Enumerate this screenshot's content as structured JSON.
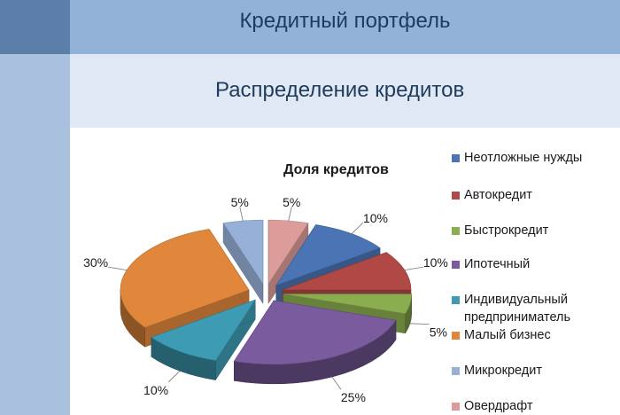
{
  "slide": {
    "title": "Кредитный портфель",
    "subtitle": "Распределение кредитов"
  },
  "chart_data": {
    "type": "pie",
    "title": "Доля кредитов",
    "categories": [
      "Неотложные нужды",
      "Автокредит",
      "Быстрокредит",
      "Ипотечный",
      "Индивидуальный предприниматель",
      "Малый бизнес",
      "Микрокредит",
      "Овердрафт"
    ],
    "values": [
      10,
      10,
      5,
      25,
      10,
      30,
      5,
      5
    ],
    "labels": [
      "10%",
      "10%",
      "5%",
      "25%",
      "10%",
      "30%",
      "5%",
      "5%"
    ],
    "colors": [
      "#4a74b4",
      "#b04845",
      "#8aad4f",
      "#7a5c9e",
      "#3d9bb3",
      "#e0873c",
      "#96b0d7",
      "#dc9c9a"
    ],
    "style": "3d-exploded",
    "legend": "right"
  }
}
